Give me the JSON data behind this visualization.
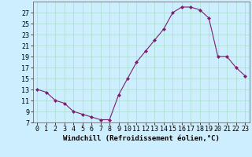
{
  "x": [
    0,
    1,
    2,
    3,
    4,
    5,
    6,
    7,
    8,
    9,
    10,
    11,
    12,
    13,
    14,
    15,
    16,
    17,
    18,
    19,
    20,
    21,
    22,
    23
  ],
  "y": [
    13,
    12.5,
    11,
    10.5,
    9,
    8.5,
    8,
    7.5,
    7.5,
    12,
    15,
    18,
    20,
    22,
    24,
    27,
    28,
    28,
    27.5,
    26,
    19,
    19,
    17,
    15.5
  ],
  "line_color": "#7b1f6e",
  "marker": "D",
  "marker_size": 2,
  "bg_color": "#cceeff",
  "grid_color": "#aaddcc",
  "xlabel": "Windchill (Refroidissement éolien,°C)",
  "xlabel_fontsize": 6.5,
  "tick_fontsize": 6,
  "ylim": [
    7,
    29
  ],
  "yticks": [
    7,
    9,
    11,
    13,
    15,
    17,
    19,
    21,
    23,
    25,
    27
  ],
  "xlim": [
    -0.5,
    23.5
  ],
  "xticks": [
    0,
    1,
    2,
    3,
    4,
    5,
    6,
    7,
    8,
    9,
    10,
    11,
    12,
    13,
    14,
    15,
    16,
    17,
    18,
    19,
    20,
    21,
    22,
    23
  ]
}
